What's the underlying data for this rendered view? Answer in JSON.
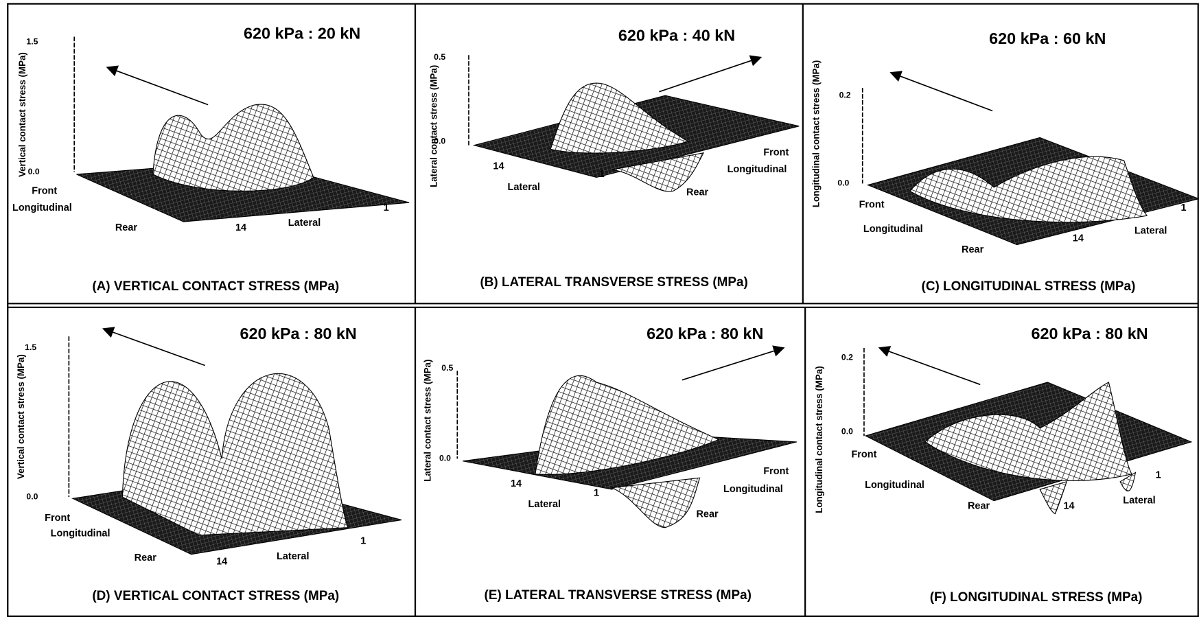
{
  "panels": [
    {
      "title": "620 kPa : 20 kN",
      "caption": "(A) VERTICAL CONTACT STRESS (MPa)",
      "y_label": "Vertical contact stress (MPa)",
      "y_max": "1.5",
      "y_zero": "0.0",
      "front": "Front",
      "longitudinal": "Longitudinal",
      "rear": "Rear",
      "lateral": "Lateral",
      "lateral_start": "14",
      "lateral_end": "1"
    },
    {
      "title": "620 kPa : 40 kN",
      "caption": "(B) LATERAL TRANSVERSE STRESS (MPa)",
      "y_label": "Lateral contact stress (MPa)",
      "y_max": "0.5",
      "y_zero": "0.0",
      "front": "Front",
      "longitudinal": "Longitudinal",
      "rear": "Rear",
      "lateral": "Lateral",
      "lateral_start": "14",
      "lateral_end": "1"
    },
    {
      "title": "620 kPa : 60 kN",
      "caption": "(C) LONGITUDINAL STRESS (MPa)",
      "y_label": "Longitudinal contact stress (MPa)",
      "y_max": "0.2",
      "y_zero": "0.0",
      "front": "Front",
      "longitudinal": "Longitudinal",
      "rear": "Rear",
      "lateral": "Lateral",
      "lateral_start": "14",
      "lateral_end": "1"
    },
    {
      "title": "620 kPa : 80 kN",
      "caption": "(D) VERTICAL CONTACT STRESS (MPa)",
      "y_label": "Vertical contact stress (MPa)",
      "y_max": "1.5",
      "y_zero": "0.0",
      "front": "Front",
      "longitudinal": "Longitudinal",
      "rear": "Rear",
      "lateral": "Lateral",
      "lateral_start": "14",
      "lateral_end": "1"
    },
    {
      "title": "620 kPa : 80 kN",
      "caption": "(E) LATERAL TRANSVERSE STRESS (MPa)",
      "y_label": "Lateral contact stress (MPa)",
      "y_max": "0.5",
      "y_zero": "0.0",
      "front": "Front",
      "longitudinal": "Longitudinal",
      "rear": "Rear",
      "lateral": "Lateral",
      "lateral_start": "14",
      "lateral_end": "1"
    },
    {
      "title": "620 kPa : 80 kN",
      "caption": "(F) LONGITUDINAL STRESS (MPa)",
      "y_label": "Longitudinal contact stress (MPa)",
      "y_max": "0.2",
      "y_zero": "0.0",
      "front": "Front",
      "longitudinal": "Longitudinal",
      "rear": "Rear",
      "lateral": "Lateral",
      "lateral_start": "14",
      "lateral_end": "1"
    }
  ]
}
